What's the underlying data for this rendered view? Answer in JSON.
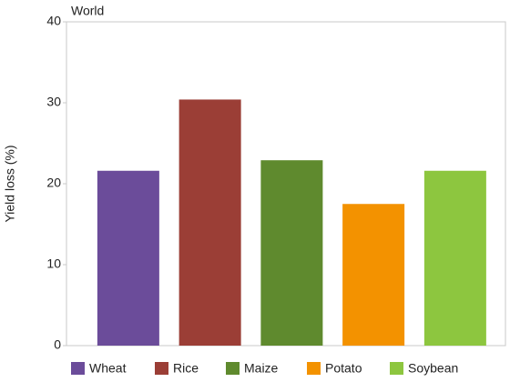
{
  "chart_data": {
    "type": "bar",
    "title": "World",
    "y_label": "Yield loss (%)",
    "categories": [
      "Wheat",
      "Rice",
      "Maize",
      "Potato",
      "Soybean"
    ],
    "values": [
      21.6,
      30.4,
      22.9,
      17.5,
      21.6
    ],
    "colors": [
      "#6b4c9a",
      "#9b3e36",
      "#5f8a2e",
      "#f39200",
      "#8dc63f"
    ],
    "ylim": [
      0,
      40
    ],
    "yticks": [
      0,
      10,
      20,
      30,
      40
    ],
    "grid": false,
    "legend": "bottom"
  }
}
